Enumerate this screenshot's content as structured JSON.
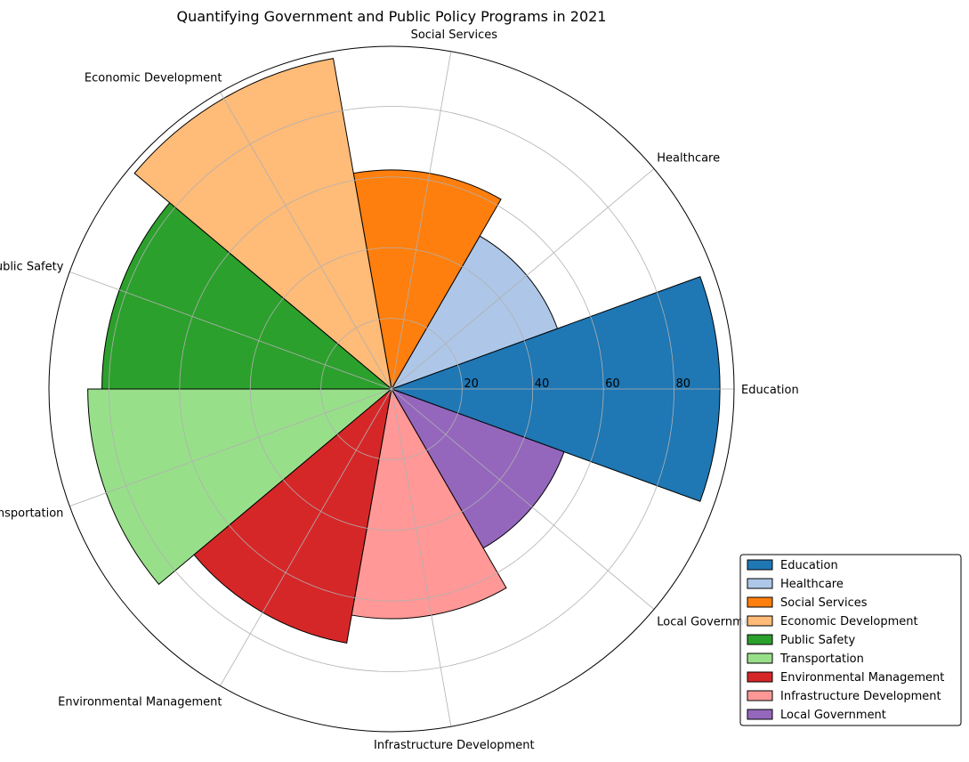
{
  "chart_data": {
    "type": "polar-bar",
    "title": "Quantifying Government and Public Policy Programs in 2021",
    "categories": [
      "Education",
      "Healthcare",
      "Social Services",
      "Economic Development",
      "Public Safety",
      "Transportation",
      "Environmental Management",
      "Infrastructure Development",
      "Local Government"
    ],
    "values": [
      93,
      50,
      62,
      95,
      82,
      86,
      73,
      65,
      52
    ],
    "colors": [
      "#1f77b4",
      "#aec7e8",
      "#ff7f0e",
      "#ffbb78",
      "#2ca02c",
      "#98df8a",
      "#d62728",
      "#ff9896",
      "#9467bd"
    ],
    "rlim": [
      0,
      97
    ],
    "radial_ticks": [
      20,
      40,
      60,
      80
    ],
    "grid": true,
    "legend_position": "lower-right"
  }
}
